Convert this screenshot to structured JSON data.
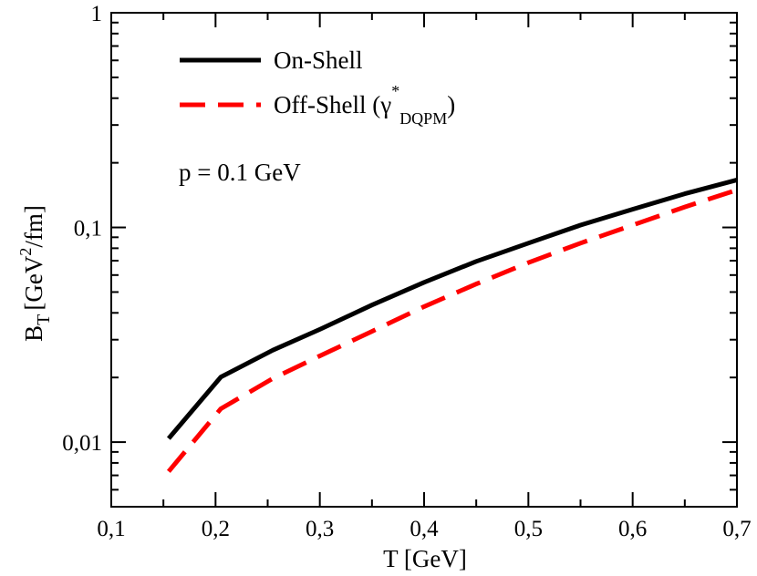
{
  "chart_data": {
    "type": "line",
    "title": "",
    "xlabel": {
      "main": "T [GeV]"
    },
    "ylabel": {
      "base": "B",
      "sub": "T",
      "unit_pre": "[GeV",
      "unit_sup": "2",
      "unit_post": "/fm]"
    },
    "x_scale": "linear",
    "y_scale": "log",
    "xlim": [
      0.1,
      0.7
    ],
    "ylim": [
      0.005,
      1
    ],
    "x_ticks": [
      {
        "value": 0.1,
        "label": "0,1"
      },
      {
        "value": 0.2,
        "label": "0,2"
      },
      {
        "value": 0.3,
        "label": "0,3"
      },
      {
        "value": 0.4,
        "label": "0,4"
      },
      {
        "value": 0.5,
        "label": "0,5"
      },
      {
        "value": 0.6,
        "label": "0,6"
      },
      {
        "value": 0.7,
        "label": "0,7"
      }
    ],
    "y_ticks": [
      {
        "value": 0.01,
        "label": "0,01"
      },
      {
        "value": 0.1,
        "label": "0,1"
      },
      {
        "value": 1,
        "label": "1"
      }
    ],
    "grid": false,
    "legend_position": "top-left",
    "annotation": "p = 0.1 GeV",
    "series": [
      {
        "name": "On-Shell",
        "color": "#000000",
        "dash": "solid",
        "x": [
          0.155,
          0.205,
          0.255,
          0.3,
          0.35,
          0.4,
          0.45,
          0.5,
          0.55,
          0.6,
          0.65,
          0.7
        ],
        "y": [
          0.0104,
          0.0201,
          0.0268,
          0.0335,
          0.0435,
          0.0555,
          0.0695,
          0.0845,
          0.1025,
          0.1215,
          0.1435,
          0.1665
        ]
      },
      {
        "name": "Off-Shell",
        "name_symbol": "γ",
        "name_sup": "*",
        "name_sub": "DQPM",
        "color": "#ff0000",
        "dash": "dashed",
        "x": [
          0.155,
          0.205,
          0.255,
          0.3,
          0.35,
          0.4,
          0.45,
          0.5,
          0.55,
          0.6,
          0.65,
          0.7
        ],
        "y": [
          0.0073,
          0.0143,
          0.0198,
          0.0252,
          0.0328,
          0.0428,
          0.0545,
          0.0685,
          0.0845,
          0.1025,
          0.1245,
          0.1495
        ]
      }
    ]
  }
}
